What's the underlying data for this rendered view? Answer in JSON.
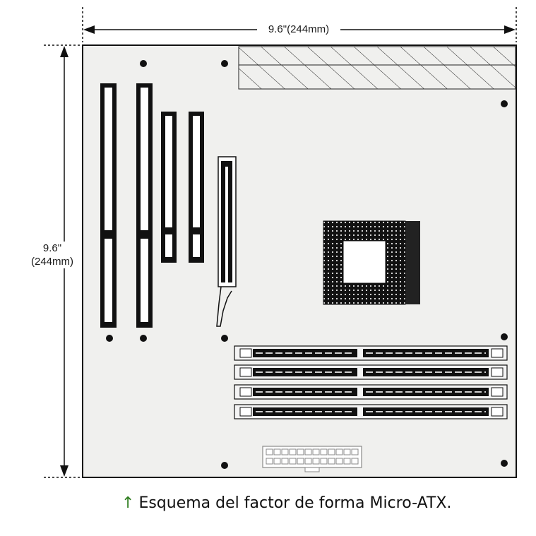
{
  "dimensions": {
    "width_label": "9.6\"(244mm)",
    "height_label_line1": "9.6\"",
    "height_label_line2": "(244mm)"
  },
  "caption": {
    "arrow_icon": "up-arrow-icon",
    "text": "Esquema del factor de forma Micro-ATX."
  },
  "colors": {
    "board_fill": "#f0f0ee",
    "outline": "#111111",
    "caption_arrow": "#2e7d1e"
  }
}
